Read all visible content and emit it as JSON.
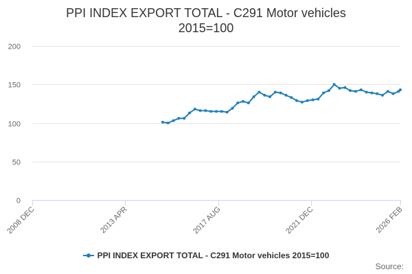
{
  "chart_data": {
    "type": "line",
    "title_line1": "PPI INDEX EXPORT TOTAL - C291 Motor vehicles",
    "title_line2": "2015=100",
    "xlabel": "",
    "ylabel": "",
    "ylim": [
      0,
      200
    ],
    "yticks": [
      0,
      50,
      100,
      150,
      200
    ],
    "xlim": [
      "2008-12",
      "2026-02"
    ],
    "xticks": [
      {
        "date": "2008-12",
        "label": "2008 DEC"
      },
      {
        "date": "2013-04",
        "label": "2013 APR"
      },
      {
        "date": "2017-08",
        "label": "2017 AUG"
      },
      {
        "date": "2021-12",
        "label": "2021 DEC"
      },
      {
        "date": "2026-02",
        "label": "2026 FEB"
      }
    ],
    "grid": true,
    "legend_position": "bottom",
    "color": "#1f7fbf",
    "series": [
      {
        "name": "PPI INDEX EXPORT TOTAL - C291 Motor vehicles 2015=100",
        "points": [
          [
            "2015-01",
            101
          ],
          [
            "2015-04",
            100
          ],
          [
            "2015-07",
            103
          ],
          [
            "2015-10",
            106
          ],
          [
            "2016-01",
            106
          ],
          [
            "2016-04",
            113
          ],
          [
            "2016-07",
            118
          ],
          [
            "2016-10",
            116
          ],
          [
            "2017-01",
            116
          ],
          [
            "2017-04",
            115
          ],
          [
            "2017-07",
            115
          ],
          [
            "2017-10",
            115
          ],
          [
            "2018-01",
            114
          ],
          [
            "2018-04",
            119
          ],
          [
            "2018-07",
            126
          ],
          [
            "2018-10",
            128
          ],
          [
            "2019-01",
            126
          ],
          [
            "2019-04",
            134
          ],
          [
            "2019-07",
            140
          ],
          [
            "2019-10",
            136
          ],
          [
            "2020-01",
            134
          ],
          [
            "2020-04",
            140
          ],
          [
            "2020-07",
            139
          ],
          [
            "2020-10",
            136
          ],
          [
            "2021-01",
            133
          ],
          [
            "2021-04",
            129
          ],
          [
            "2021-07",
            127
          ],
          [
            "2021-10",
            129
          ],
          [
            "2022-01",
            130
          ],
          [
            "2022-04",
            131
          ],
          [
            "2022-07",
            139
          ],
          [
            "2022-10",
            142
          ],
          [
            "2023-01",
            150
          ],
          [
            "2023-04",
            145
          ],
          [
            "2023-07",
            146
          ],
          [
            "2023-10",
            142
          ],
          [
            "2024-01",
            141
          ],
          [
            "2024-04",
            143
          ],
          [
            "2024-07",
            140
          ],
          [
            "2024-10",
            139
          ],
          [
            "2025-01",
            138
          ],
          [
            "2025-04",
            136
          ],
          [
            "2025-07",
            141
          ],
          [
            "2025-10",
            138
          ],
          [
            "2026-01",
            141
          ],
          [
            "2026-02",
            143
          ]
        ]
      }
    ]
  },
  "legend": {
    "label": "PPI INDEX EXPORT TOTAL - C291 Motor vehicles 2015=100"
  },
  "credit": "Source:"
}
